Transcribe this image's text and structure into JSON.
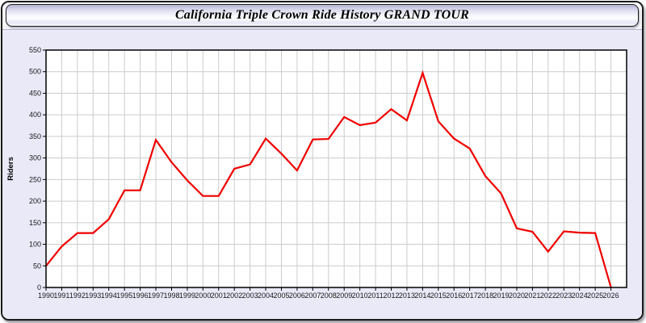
{
  "title": {
    "text": "California Triple Crown Ride History GRAND TOUR"
  },
  "axes": {
    "ylabel": "Riders",
    "y_ticks": [
      0,
      50,
      100,
      150,
      200,
      250,
      300,
      350,
      400,
      450,
      500,
      550
    ]
  },
  "colors": {
    "line": "#ee0000",
    "grid": "#cccccc",
    "plot_background": "#ffffff",
    "panel_background": "#e9e9f8",
    "axis_border": "#000000",
    "tick_text": "#1a1a1a"
  },
  "chart_data": {
    "type": "line",
    "title": "California Triple Crown Ride History GRAND TOUR",
    "xlabel": "",
    "ylabel": "Riders",
    "x": [
      1990,
      1991,
      1992,
      1993,
      1994,
      1995,
      1996,
      1997,
      1998,
      1999,
      2000,
      2001,
      2002,
      2003,
      2004,
      2005,
      2006,
      2007,
      2008,
      2009,
      2010,
      2011,
      2012,
      2013,
      2014,
      2015,
      2016,
      2017,
      2018,
      2019,
      2020,
      2021,
      2022,
      2023,
      2024,
      2025,
      2026
    ],
    "values": [
      50,
      95,
      126,
      126,
      158,
      225,
      225,
      342,
      290,
      248,
      212,
      212,
      275,
      285,
      345,
      310,
      271,
      343,
      344,
      395,
      376,
      382,
      413,
      387,
      497,
      385,
      345,
      322,
      258,
      218,
      137,
      129,
      83,
      130,
      127,
      126,
      0
    ],
    "series_name": "Riders",
    "ylim": [
      0,
      550
    ],
    "ytick_step": 50,
    "xlim": [
      1990,
      2027
    ],
    "grid": true,
    "legend_position": "none",
    "line_color": "#ee0000"
  }
}
